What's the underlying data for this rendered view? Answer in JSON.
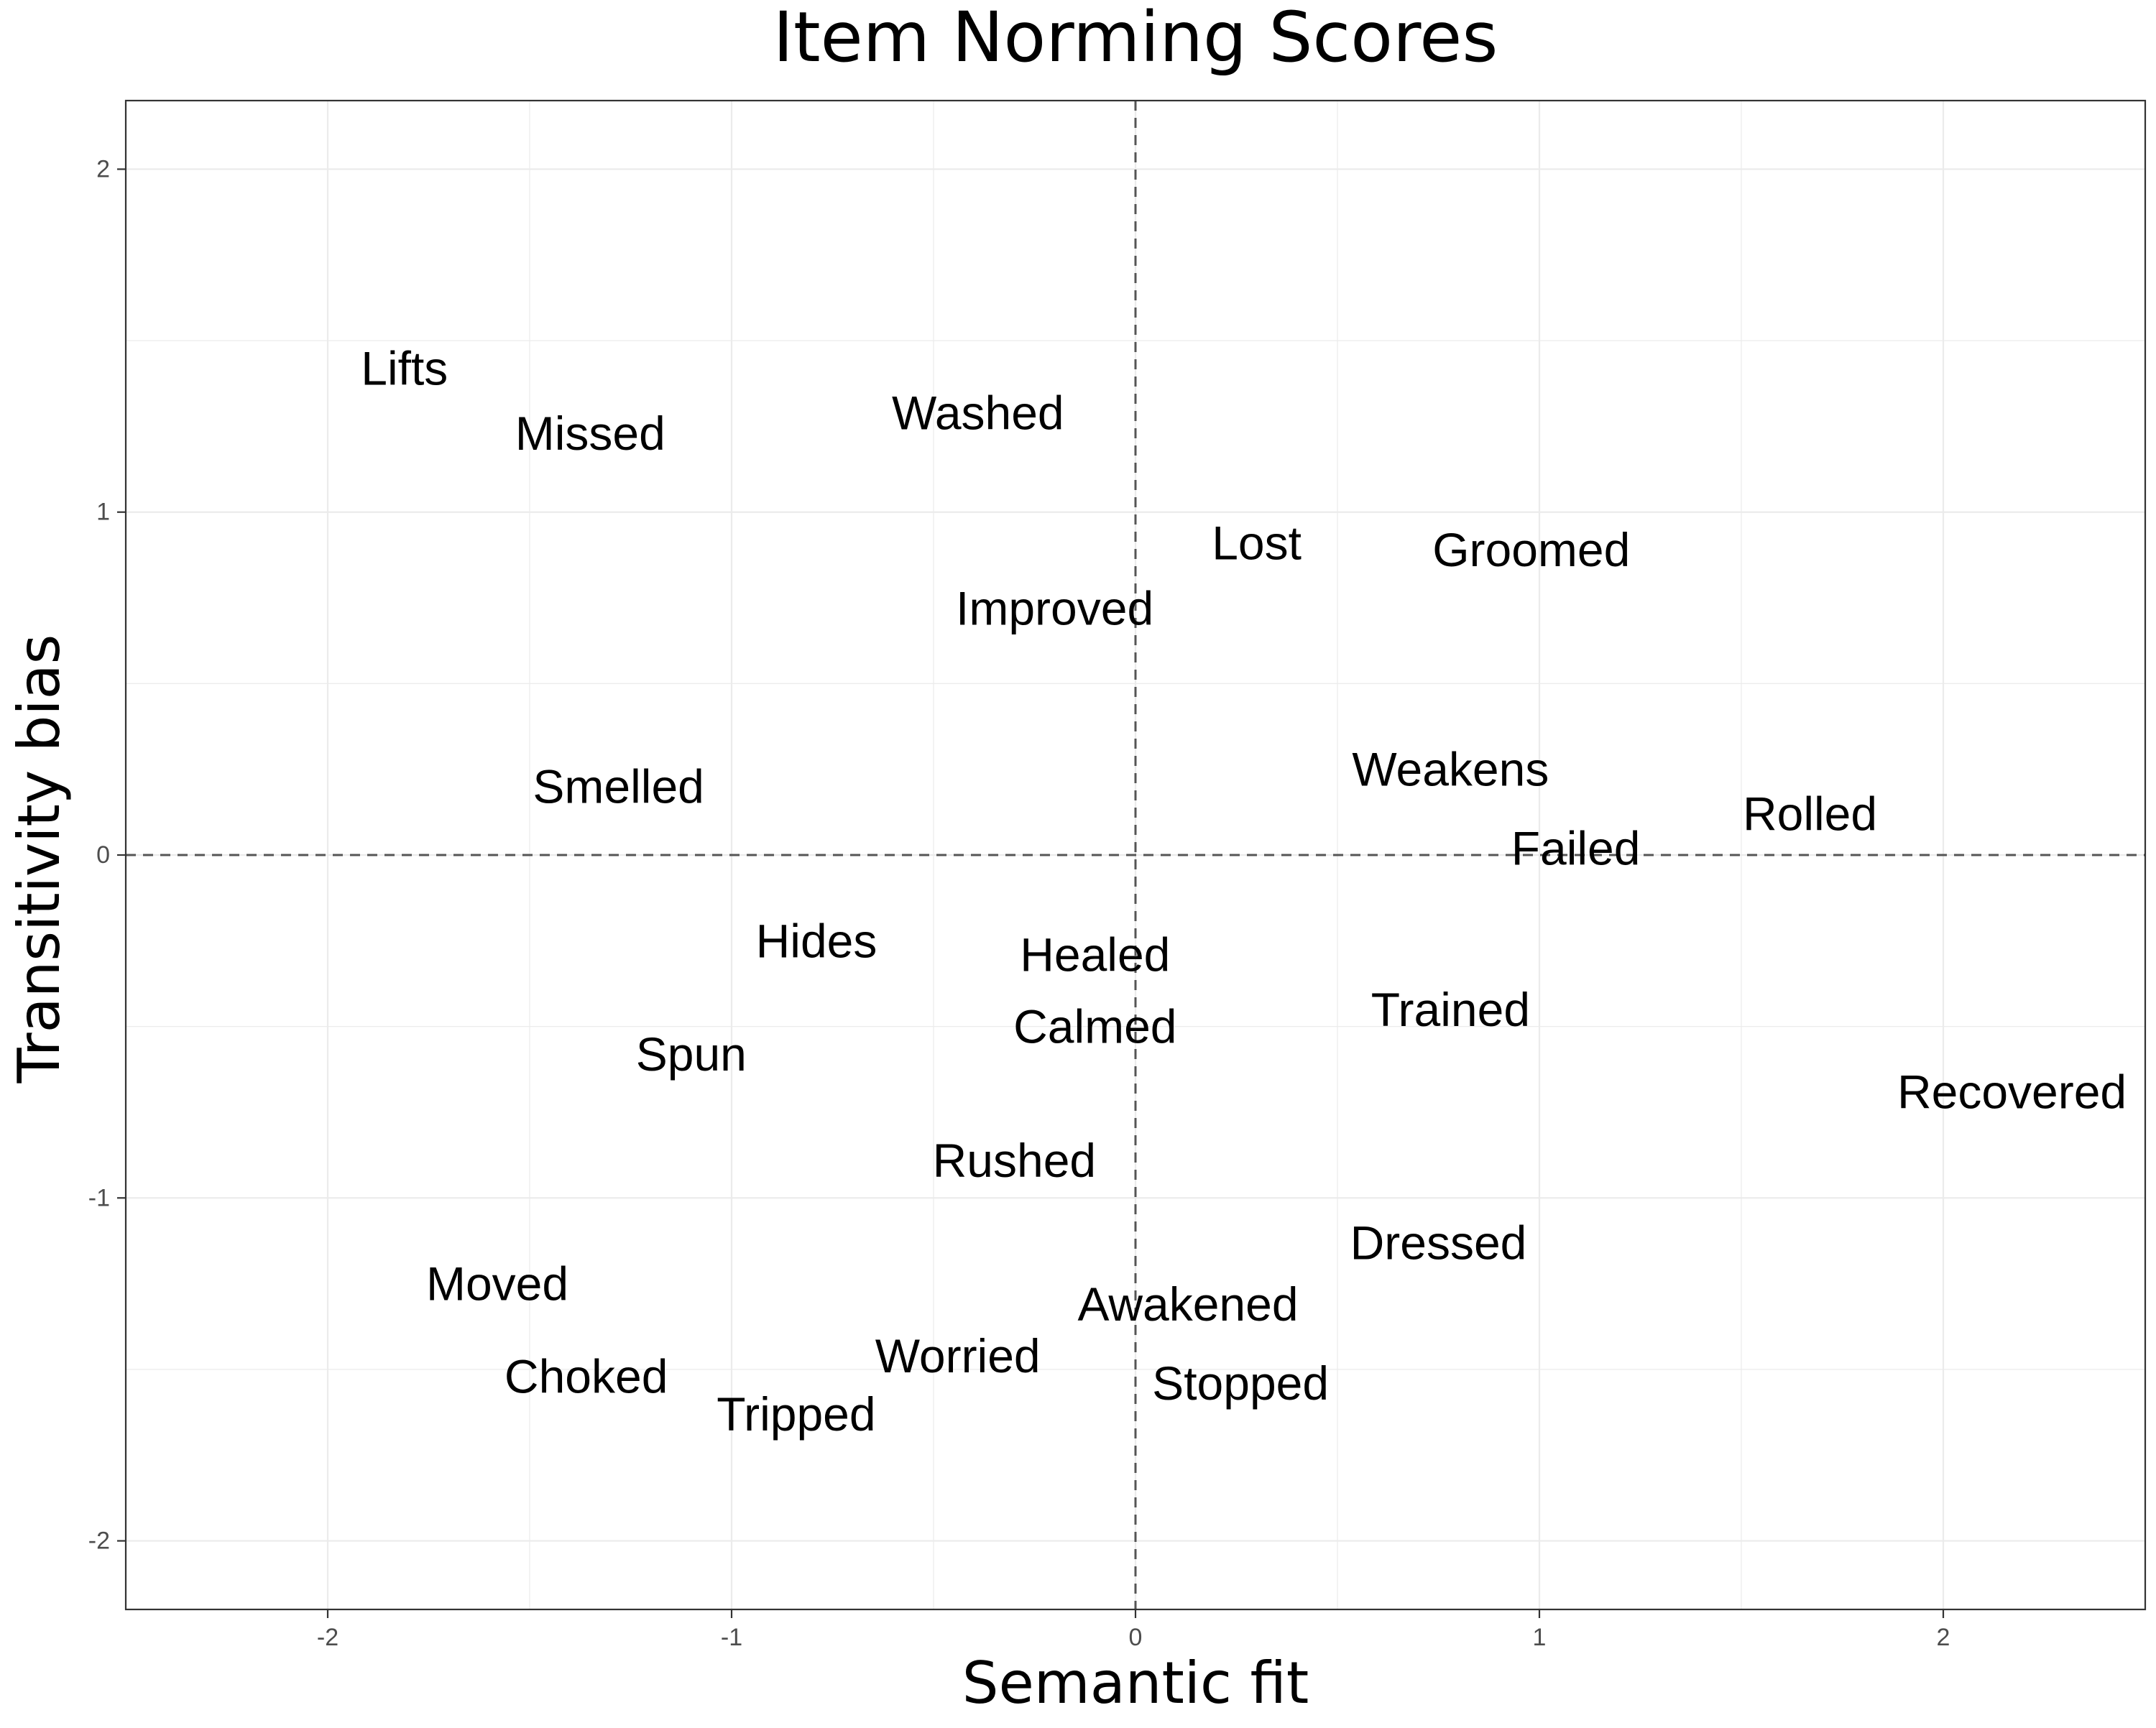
{
  "chart_data": {
    "type": "scatter",
    "title": "Item Norming Scores",
    "xlabel": "Semantic fit",
    "ylabel": "Transitivity bias",
    "xlim": [
      -2.5,
      2.5
    ],
    "ylim": [
      -2.2,
      2.2
    ],
    "x_ticks": [
      -2,
      -1,
      0,
      1,
      2
    ],
    "y_ticks": [
      -2,
      -1,
      0,
      1,
      2
    ],
    "x_tick_labels": [
      "-2",
      "-1",
      "0",
      "1",
      "2"
    ],
    "y_tick_labels": [
      "-2",
      "-1",
      "0",
      "1",
      "2"
    ],
    "grid": true,
    "reference_lines": {
      "x": 0,
      "y": 0,
      "style": "dashed"
    },
    "marker": "text-label",
    "points": [
      {
        "label": "Lifts",
        "x": -1.81,
        "y": 1.42
      },
      {
        "label": "Missed",
        "x": -1.35,
        "y": 1.23
      },
      {
        "label": "Washed",
        "x": -0.39,
        "y": 1.29
      },
      {
        "label": "Lost",
        "x": 0.3,
        "y": 0.91
      },
      {
        "label": "Groomed",
        "x": 0.98,
        "y": 0.89
      },
      {
        "label": "Improved",
        "x": -0.2,
        "y": 0.72
      },
      {
        "label": "Smelled",
        "x": -1.28,
        "y": 0.2
      },
      {
        "label": "Weakens",
        "x": 0.78,
        "y": 0.25
      },
      {
        "label": "Rolled",
        "x": 1.67,
        "y": 0.12
      },
      {
        "label": "Failed",
        "x": 1.09,
        "y": 0.02
      },
      {
        "label": "Hides",
        "x": -0.79,
        "y": -0.25
      },
      {
        "label": "Healed",
        "x": -0.1,
        "y": -0.29
      },
      {
        "label": "Calmed",
        "x": -0.1,
        "y": -0.5
      },
      {
        "label": "Trained",
        "x": 0.78,
        "y": -0.45
      },
      {
        "label": "Spun",
        "x": -1.1,
        "y": -0.58
      },
      {
        "label": "Recovered",
        "x": 2.17,
        "y": -0.69
      },
      {
        "label": "Rushed",
        "x": -0.3,
        "y": -0.89
      },
      {
        "label": "Dressed",
        "x": 0.75,
        "y": -1.13
      },
      {
        "label": "Moved",
        "x": -1.58,
        "y": -1.25
      },
      {
        "label": "Awakened",
        "x": 0.13,
        "y": -1.31
      },
      {
        "label": "Worried",
        "x": -0.44,
        "y": -1.46
      },
      {
        "label": "Choked",
        "x": -1.36,
        "y": -1.52
      },
      {
        "label": "Stopped",
        "x": 0.26,
        "y": -1.54
      },
      {
        "label": "Tripped",
        "x": -0.84,
        "y": -1.63
      }
    ]
  }
}
